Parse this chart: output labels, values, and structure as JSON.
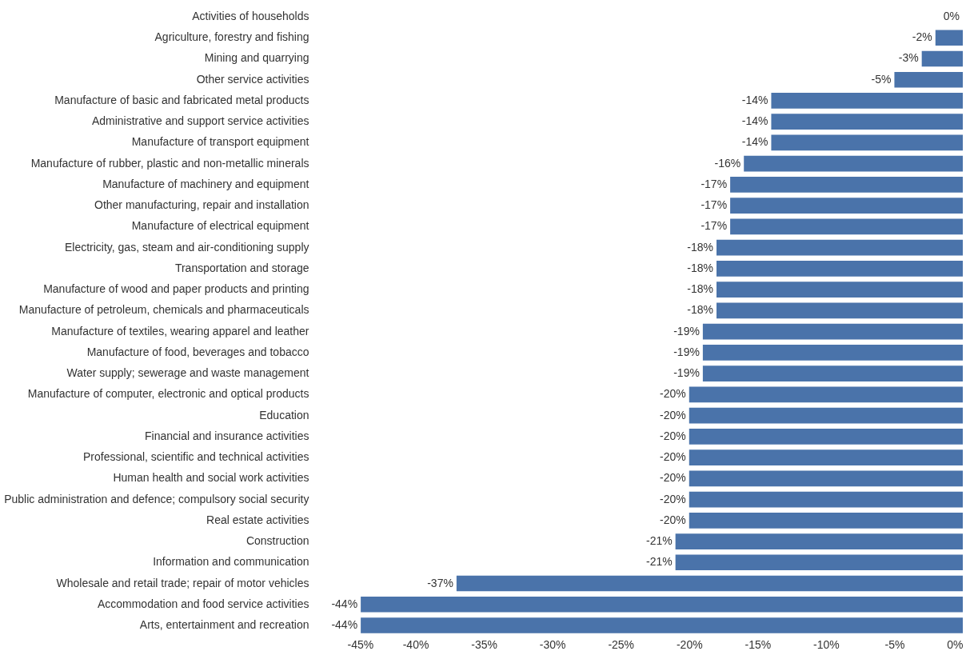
{
  "chart_data": {
    "type": "bar",
    "orientation": "horizontal",
    "categories": [
      "Activities of households",
      "Agriculture, forestry and fishing",
      "Mining and quarrying",
      "Other service activities",
      "Manufacture of basic and fabricated metal products",
      "Administrative and support service activities",
      "Manufacture of transport equipment",
      "Manufacture of rubber, plastic and non-metallic minerals",
      "Manufacture of machinery and equipment",
      "Other manufacturing, repair and installation",
      "Manufacture of electrical equipment",
      "Electricity, gas, steam and air-conditioning supply",
      "Transportation and storage",
      "Manufacture of wood and paper products and printing",
      "Manufacture of petroleum, chemicals and pharmaceuticals",
      "Manufacture of textiles, wearing apparel and leather",
      "Manufacture of food, beverages and tobacco",
      "Water supply; sewerage and waste management",
      "Manufacture of computer, electronic and optical products",
      "Education",
      "Financial and insurance activities",
      "Professional, scientific and technical activities",
      "Human health and social work activities",
      "Public administration and defence; compulsory social security",
      "Real estate activities",
      "Construction",
      "Information and communication",
      "Wholesale and retail trade; repair of motor vehicles",
      "Accommodation and food service activities",
      "Arts, entertainment and recreation"
    ],
    "values": [
      0,
      -2,
      -3,
      -5,
      -14,
      -14,
      -14,
      -16,
      -17,
      -17,
      -17,
      -18,
      -18,
      -18,
      -18,
      -19,
      -19,
      -19,
      -20,
      -20,
      -20,
      -20,
      -20,
      -20,
      -20,
      -21,
      -21,
      -37,
      -44,
      -44
    ],
    "value_labels": [
      "0%",
      "-2%",
      "-3%",
      "-5%",
      "-14%",
      "-14%",
      "-14%",
      "-16%",
      "-17%",
      "-17%",
      "-17%",
      "-18%",
      "-18%",
      "-18%",
      "-18%",
      "-19%",
      "-19%",
      "-19%",
      "-20%",
      "-20%",
      "-20%",
      "-20%",
      "-20%",
      "-20%",
      "-20%",
      "-21%",
      "-21%",
      "-37%",
      "-44%",
      "-44%"
    ],
    "color": "#4a73aa",
    "xlim": [
      -45,
      0
    ],
    "xticks": [
      {
        "value": -45,
        "label": "-45%"
      },
      {
        "value": -40,
        "label": "-40%"
      },
      {
        "value": -35,
        "label": "-35%"
      },
      {
        "value": -30,
        "label": "-30%"
      },
      {
        "value": -25,
        "label": "-25%"
      },
      {
        "value": -20,
        "label": "-20%"
      },
      {
        "value": -15,
        "label": "-15%"
      },
      {
        "value": -10,
        "label": "-10%"
      },
      {
        "value": -5,
        "label": "-5%"
      },
      {
        "value": 0,
        "label": "0%"
      }
    ],
    "grid": false
  }
}
